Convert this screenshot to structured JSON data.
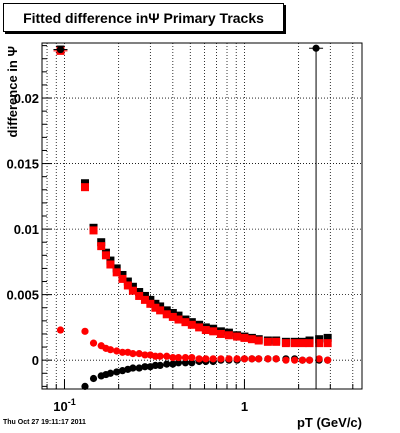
{
  "title": "Fitted difference inΨ   Primary Tracks",
  "datestamp": "Thu Oct 27 19:11:17 2011",
  "chart_data": {
    "type": "scatter",
    "xlabel": "pT (GeV/c)",
    "ylabel": "difference in Ψ",
    "xscale": "log",
    "xlim": [
      0.075,
      4.5
    ],
    "ylim": [
      -0.0022,
      0.0242
    ],
    "xticks": [
      {
        "value": 0.1,
        "label": "10",
        "sup": "-1"
      },
      {
        "value": 1,
        "label": "1",
        "sup": ""
      }
    ],
    "yticks": [
      {
        "value": 0,
        "label": "0"
      },
      {
        "value": 0.005,
        "label": "0.005"
      },
      {
        "value": 0.01,
        "label": "0.01"
      },
      {
        "value": 0.015,
        "label": "0.015"
      },
      {
        "value": 0.02,
        "label": "0.02"
      }
    ],
    "grid": true,
    "colors": {
      "black_series": "#000000",
      "red_series": "#ff0000"
    },
    "series": [
      {
        "color": "#000000",
        "marker": "square",
        "points": [
          [
            0.095,
            0.0237
          ],
          [
            0.13,
            0.0135
          ],
          [
            0.145,
            0.0101
          ],
          [
            0.16,
            0.009
          ],
          [
            0.17,
            0.0082
          ],
          [
            0.18,
            0.0076
          ],
          [
            0.195,
            0.007
          ],
          [
            0.21,
            0.0065
          ],
          [
            0.225,
            0.006
          ],
          [
            0.24,
            0.0056
          ],
          [
            0.26,
            0.0052
          ],
          [
            0.28,
            0.0049
          ],
          [
            0.3,
            0.0046
          ],
          [
            0.32,
            0.0043
          ],
          [
            0.34,
            0.0041
          ],
          [
            0.37,
            0.0038
          ],
          [
            0.4,
            0.0036
          ],
          [
            0.43,
            0.0034
          ],
          [
            0.47,
            0.0031
          ],
          [
            0.51,
            0.0029
          ],
          [
            0.56,
            0.0027
          ],
          [
            0.61,
            0.0025
          ],
          [
            0.67,
            0.0024
          ],
          [
            0.74,
            0.0022
          ],
          [
            0.82,
            0.0021
          ],
          [
            0.91,
            0.0019
          ],
          [
            1.0,
            0.0018
          ],
          [
            1.1,
            0.0017
          ],
          [
            1.2,
            0.0016
          ],
          [
            1.35,
            0.0015
          ],
          [
            1.5,
            0.0015
          ],
          [
            1.7,
            0.0014
          ],
          [
            1.9,
            0.0014
          ],
          [
            2.1,
            0.0014
          ],
          [
            2.3,
            0.0015
          ],
          [
            2.6,
            0.0016
          ],
          [
            2.9,
            0.0017
          ]
        ]
      },
      {
        "color": "#ff0000",
        "marker": "square",
        "points": [
          [
            0.095,
            0.0236
          ],
          [
            0.13,
            0.0132
          ],
          [
            0.145,
            0.0099
          ],
          [
            0.16,
            0.0087
          ],
          [
            0.17,
            0.008
          ],
          [
            0.18,
            0.0073
          ],
          [
            0.195,
            0.0067
          ],
          [
            0.21,
            0.0062
          ],
          [
            0.225,
            0.0057
          ],
          [
            0.24,
            0.0053
          ],
          [
            0.26,
            0.0049
          ],
          [
            0.28,
            0.0046
          ],
          [
            0.3,
            0.0043
          ],
          [
            0.32,
            0.004
          ],
          [
            0.34,
            0.0038
          ],
          [
            0.37,
            0.0035
          ],
          [
            0.4,
            0.0033
          ],
          [
            0.43,
            0.0031
          ],
          [
            0.47,
            0.0029
          ],
          [
            0.51,
            0.0027
          ],
          [
            0.56,
            0.0025
          ],
          [
            0.61,
            0.0023
          ],
          [
            0.67,
            0.0022
          ],
          [
            0.74,
            0.002
          ],
          [
            0.82,
            0.0019
          ],
          [
            0.91,
            0.0018
          ],
          [
            1.0,
            0.0017
          ],
          [
            1.1,
            0.0016
          ],
          [
            1.2,
            0.0015
          ],
          [
            1.35,
            0.0014
          ],
          [
            1.5,
            0.0014
          ],
          [
            1.7,
            0.0013
          ],
          [
            1.9,
            0.0013
          ],
          [
            2.1,
            0.0013
          ],
          [
            2.3,
            0.0013
          ],
          [
            2.6,
            0.0013
          ],
          [
            2.9,
            0.0013
          ]
        ]
      },
      {
        "color": "#000000",
        "marker": "circle",
        "points": [
          [
            0.095,
            0.0237
          ],
          [
            0.13,
            -0.002
          ],
          [
            0.145,
            -0.0014
          ],
          [
            0.16,
            -0.0012
          ],
          [
            0.17,
            -0.0011
          ],
          [
            0.18,
            -0.001
          ],
          [
            0.195,
            -0.0009
          ],
          [
            0.21,
            -0.0008
          ],
          [
            0.225,
            -0.0007
          ],
          [
            0.24,
            -0.0006
          ],
          [
            0.26,
            -0.0006
          ],
          [
            0.28,
            -0.0005
          ],
          [
            0.3,
            -0.0005
          ],
          [
            0.32,
            -0.0004
          ],
          [
            0.34,
            -0.0004
          ],
          [
            0.37,
            -0.0003
          ],
          [
            0.4,
            -0.0003
          ],
          [
            0.43,
            -0.0002
          ],
          [
            0.47,
            -0.0002
          ],
          [
            0.51,
            -0.0002
          ],
          [
            0.56,
            -0.0001
          ],
          [
            0.61,
            -0.0001
          ],
          [
            0.67,
            -0.0001
          ],
          [
            0.74,
            0.0
          ],
          [
            0.82,
            0.0
          ],
          [
            0.91,
            0.0
          ],
          [
            1.0,
            0.0001
          ],
          [
            1.1,
            0.0001
          ],
          [
            1.2,
            0.0001
          ],
          [
            1.35,
            0.0001
          ],
          [
            1.5,
            0.0001
          ],
          [
            1.7,
            0.0001
          ],
          [
            1.9,
            0.0001
          ],
          [
            2.1,
            0.0
          ],
          [
            2.3,
            0.0
          ],
          [
            2.5,
            0.0238
          ],
          [
            2.6,
            0.0
          ],
          [
            2.9,
            0.0
          ]
        ]
      },
      {
        "color": "#ff0000",
        "marker": "circle",
        "points": [
          [
            0.095,
            0.0023
          ],
          [
            0.13,
            0.0022
          ],
          [
            0.145,
            0.0013
          ],
          [
            0.16,
            0.0011
          ],
          [
            0.17,
            0.0009
          ],
          [
            0.18,
            0.0008
          ],
          [
            0.195,
            0.0007
          ],
          [
            0.21,
            0.0006
          ],
          [
            0.225,
            0.0006
          ],
          [
            0.24,
            0.0005
          ],
          [
            0.26,
            0.0005
          ],
          [
            0.28,
            0.0004
          ],
          [
            0.3,
            0.0004
          ],
          [
            0.32,
            0.0003
          ],
          [
            0.34,
            0.0003
          ],
          [
            0.37,
            0.0003
          ],
          [
            0.4,
            0.0002
          ],
          [
            0.43,
            0.0002
          ],
          [
            0.47,
            0.0002
          ],
          [
            0.51,
            0.0002
          ],
          [
            0.56,
            0.0001
          ],
          [
            0.61,
            0.0001
          ],
          [
            0.67,
            0.0001
          ],
          [
            0.74,
            0.0001
          ],
          [
            0.82,
            0.0001
          ],
          [
            0.91,
            0.0001
          ],
          [
            1.0,
            0.0001
          ],
          [
            1.1,
            0.0001
          ],
          [
            1.2,
            0.0001
          ],
          [
            1.35,
            0.0001
          ],
          [
            1.5,
            0.0001
          ],
          [
            1.7,
            0.0
          ],
          [
            1.9,
            0.0
          ],
          [
            2.1,
            0.0
          ],
          [
            2.3,
            0.0
          ],
          [
            2.6,
            0.0001
          ],
          [
            2.9,
            0.0
          ]
        ]
      }
    ]
  }
}
